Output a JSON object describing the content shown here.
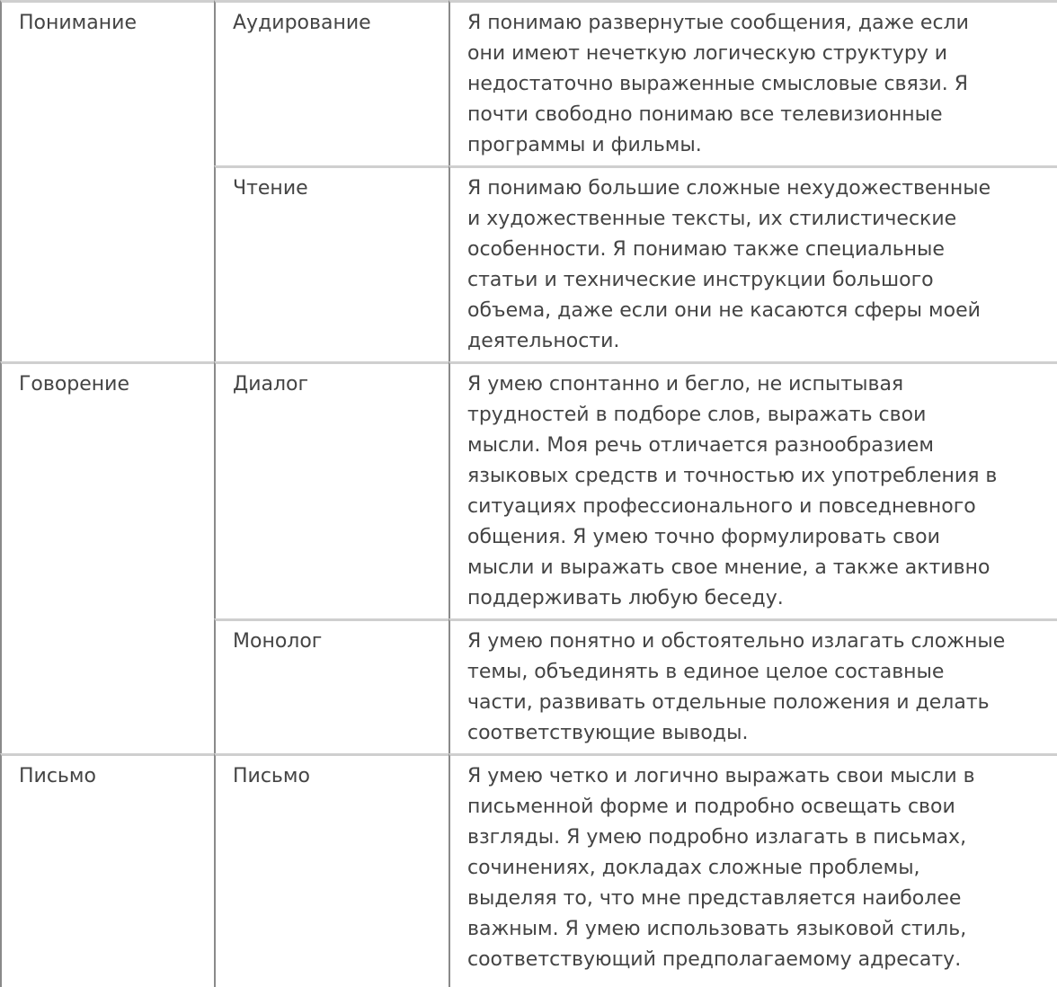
{
  "rows": [
    {
      "category": "Понимание",
      "skill": "Аудирование",
      "lines": [
        "Я понимаю развернутые сообщения, даже если",
        "они имеют нечеткую логическую структуру и",
        "недостаточно выраженные смысловые связи. Я",
        "почти свободно понимаю все телевизионные",
        "программы и фильмы."
      ]
    },
    {
      "category": "",
      "skill": "Чтение",
      "lines": [
        "Я понимаю большие сложные нехудожественные",
        "и художественные тексты, их стилистические",
        "особенности. Я понимаю также специальные",
        "статьи и технические инструкции большого",
        "объема, даже если они не касаются сферы моей",
        "деятельности."
      ]
    },
    {
      "category": "Говорение",
      "skill": "Диалог",
      "lines": [
        "Я умею спонтанно и бегло, не испытывая",
        "трудностей в подборе слов, выражать свои",
        "мысли. Моя речь отличается разнообразием",
        "языковых средств и точностью их употребления в",
        "ситуациях профессионального и повседневного",
        "общения. Я умею точно формулировать свои",
        "мысли и выражать свое мнение, а также активно",
        "поддерживать любую беседу."
      ]
    },
    {
      "category": "",
      "skill": "Монолог",
      "lines": [
        "Я умею понятно и обстоятельно излагать сложные",
        "темы, объединять в единое целое составные",
        "части, развивать отдельные положения и делать",
        "соответствующие выводы."
      ]
    },
    {
      "category": "Письмо",
      "skill": "Письмо",
      "lines": [
        "Я умею четко и логично выражать свои мысли в",
        "письменной форме и подробно освещать свои",
        "взгляды. Я умею подробно излагать в письмах,",
        "сочинениях, докладах сложные проблемы,",
        "выделяя то, что мне представляется наиболее",
        "важным. Я умею использовать языковой стиль,",
        "соответствующий предполагаемому адресату."
      ]
    }
  ]
}
